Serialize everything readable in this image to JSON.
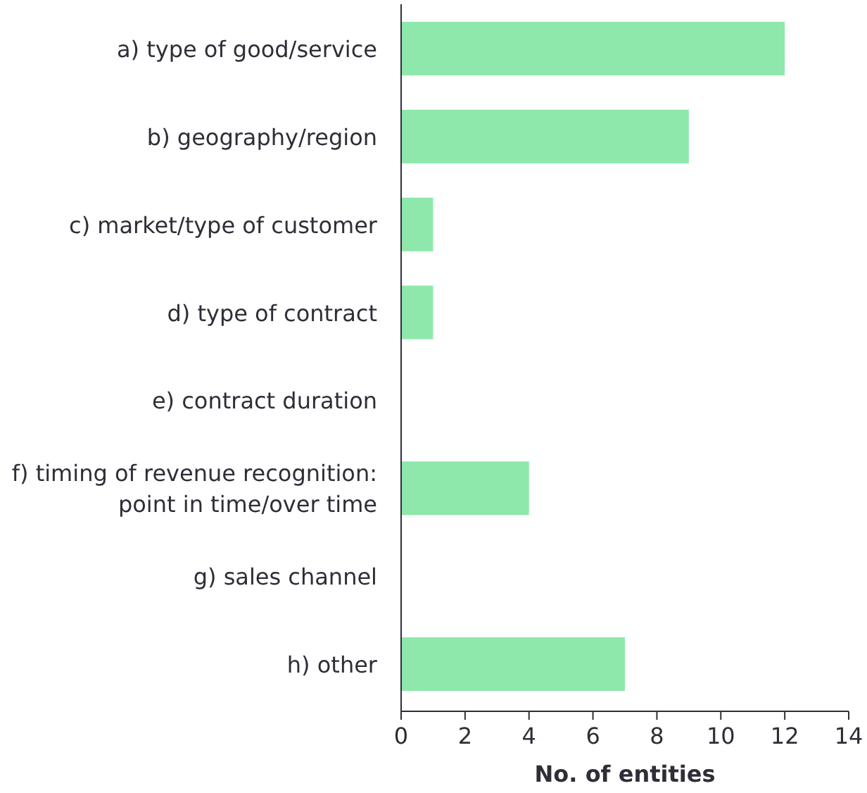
{
  "chart_data": {
    "type": "bar",
    "orientation": "horizontal",
    "xlabel": "No. of entities",
    "categories": [
      "a) type of good/service",
      "b) geography/region",
      "c) market/type of customer",
      "d) type of contract",
      "e) contract duration",
      "f) timing of revenue recognition: point in time/over time",
      "g) sales channel",
      "h) other"
    ],
    "values": [
      12,
      9,
      1,
      1,
      0,
      4,
      0,
      7
    ],
    "color": "#8ee8ab",
    "xlim": [
      0,
      14
    ],
    "xticks": [
      0,
      2,
      4,
      6,
      8,
      10,
      12,
      14
    ],
    "grid": false
  }
}
